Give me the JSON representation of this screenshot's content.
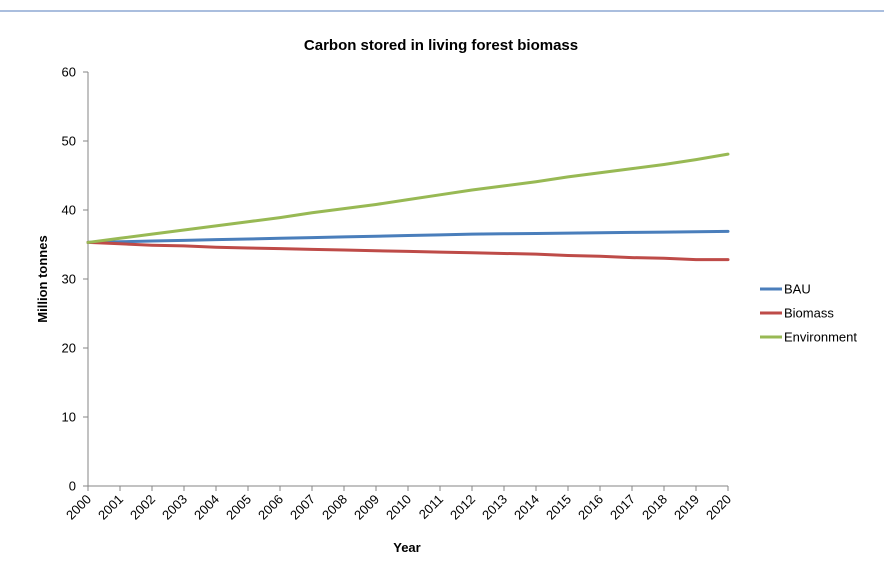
{
  "chart_data": {
    "type": "line",
    "title": "Carbon stored in living forest biomass",
    "xlabel": "Year",
    "ylabel": "Million tonnes",
    "x": [
      "2000",
      "2001",
      "2002",
      "2003",
      "2004",
      "2005",
      "2006",
      "2007",
      "2008",
      "2009",
      "2010",
      "2011",
      "2012",
      "2013",
      "2014",
      "2015",
      "2016",
      "2017",
      "2018",
      "2019",
      "2020"
    ],
    "ylim": [
      0,
      60
    ],
    "yticks": [
      "0",
      "10",
      "20",
      "30",
      "40",
      "50",
      "60"
    ],
    "grid": false,
    "legend_position": "right",
    "series": [
      {
        "name": "BAU",
        "color": "#4a7ebb",
        "values": [
          35.3,
          35.4,
          35.5,
          35.6,
          35.7,
          35.8,
          35.9,
          36.0,
          36.1,
          36.2,
          36.3,
          36.4,
          36.5,
          36.55,
          36.6,
          36.65,
          36.7,
          36.75,
          36.8,
          36.85,
          36.9
        ]
      },
      {
        "name": "Biomass",
        "color": "#be4b48",
        "values": [
          35.3,
          35.1,
          34.9,
          34.8,
          34.6,
          34.5,
          34.4,
          34.3,
          34.2,
          34.1,
          34.0,
          33.9,
          33.8,
          33.7,
          33.6,
          33.4,
          33.3,
          33.1,
          33.0,
          32.8,
          32.8
        ]
      },
      {
        "name": "Environment",
        "color": "#98b954",
        "values": [
          35.3,
          35.9,
          36.5,
          37.1,
          37.7,
          38.3,
          38.9,
          39.6,
          40.2,
          40.8,
          41.5,
          42.2,
          42.9,
          43.5,
          44.1,
          44.8,
          45.4,
          46.0,
          46.6,
          47.3,
          48.1
        ]
      }
    ]
  }
}
